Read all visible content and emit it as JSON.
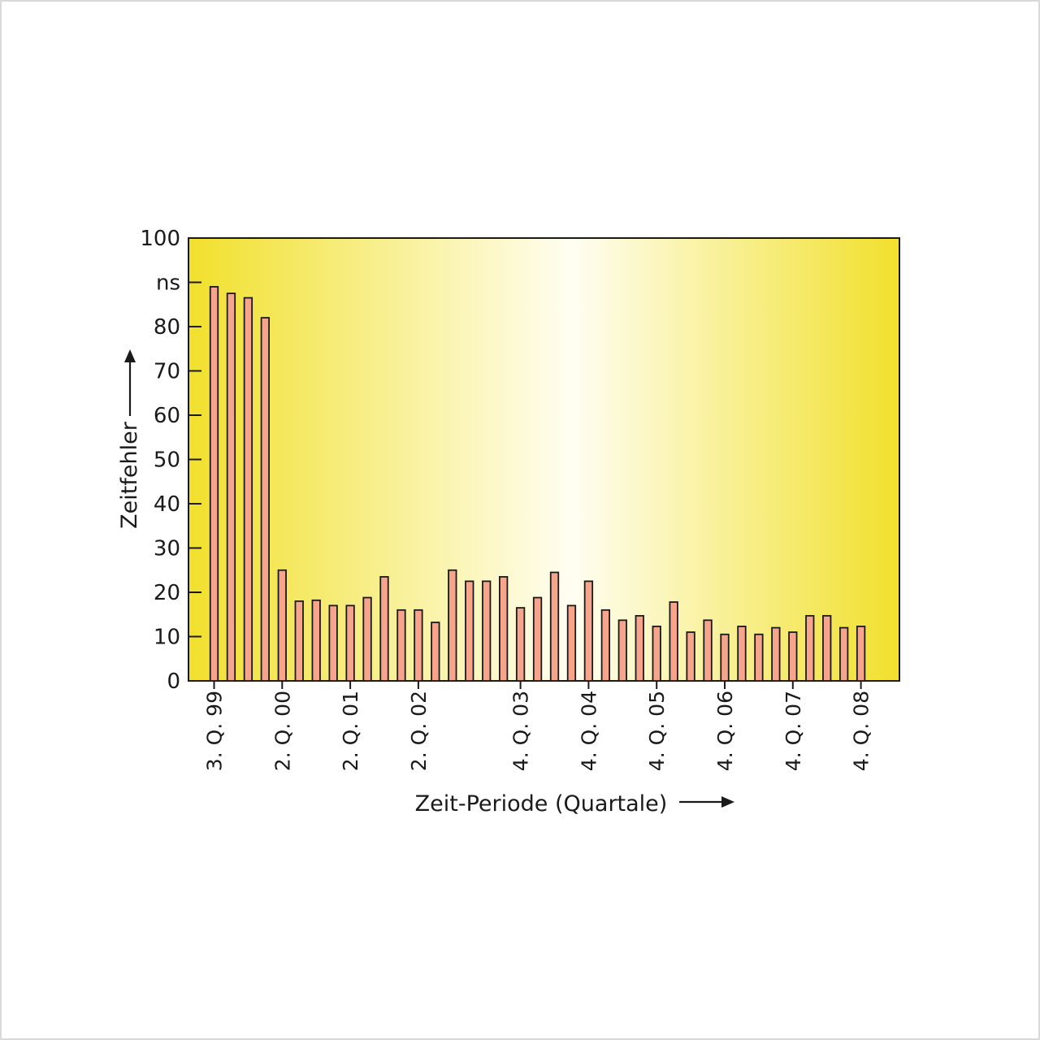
{
  "colors": {
    "plot_edge": "#f1e02c",
    "plot_center": "#fffef2",
    "bar_fill": "#f6a58c",
    "bar_stroke": "#1a1a1a",
    "axis": "#1a1a1a"
  },
  "chart_data": {
    "type": "bar",
    "title": "",
    "ylabel": "Zeitfehler",
    "yunit": "ns",
    "xlabel": "Zeit-Periode (Quartale)",
    "ylim": [
      0,
      100
    ],
    "yticks": [
      {
        "value": 0,
        "label": "0"
      },
      {
        "value": 10,
        "label": "10"
      },
      {
        "value": 20,
        "label": "20"
      },
      {
        "value": 30,
        "label": "30"
      },
      {
        "value": 40,
        "label": "40"
      },
      {
        "value": 50,
        "label": "50"
      },
      {
        "value": 60,
        "label": "60"
      },
      {
        "value": 70,
        "label": "70"
      },
      {
        "value": 80,
        "label": "80"
      },
      {
        "value": 90,
        "label": "ns"
      },
      {
        "value": 100,
        "label": "100"
      }
    ],
    "xticks": [
      {
        "index": 0,
        "label": "3. Q. 99"
      },
      {
        "index": 4,
        "label": "2. Q. 00"
      },
      {
        "index": 8,
        "label": "2. Q. 01"
      },
      {
        "index": 12,
        "label": "2. Q. 02"
      },
      {
        "index": 18,
        "label": "4. Q. 03"
      },
      {
        "index": 22,
        "label": "4. Q. 04"
      },
      {
        "index": 26,
        "label": "4. Q. 05"
      },
      {
        "index": 30,
        "label": "4. Q. 06"
      },
      {
        "index": 34,
        "label": "4. Q. 07"
      },
      {
        "index": 38,
        "label": "4. Q. 08"
      }
    ],
    "values": [
      89,
      87.5,
      86.5,
      82,
      25,
      18,
      18.2,
      17,
      17,
      18.8,
      23.5,
      16,
      16,
      13.2,
      25,
      22.5,
      22.5,
      23.5,
      16.5,
      18.8,
      24.5,
      17,
      22.5,
      16,
      13.7,
      14.7,
      12.3,
      17.8,
      11,
      13.7,
      10.5,
      12.3,
      10.5,
      12,
      11,
      14.7,
      14.7,
      12,
      12.3
    ],
    "grid": false,
    "legend": "none"
  }
}
